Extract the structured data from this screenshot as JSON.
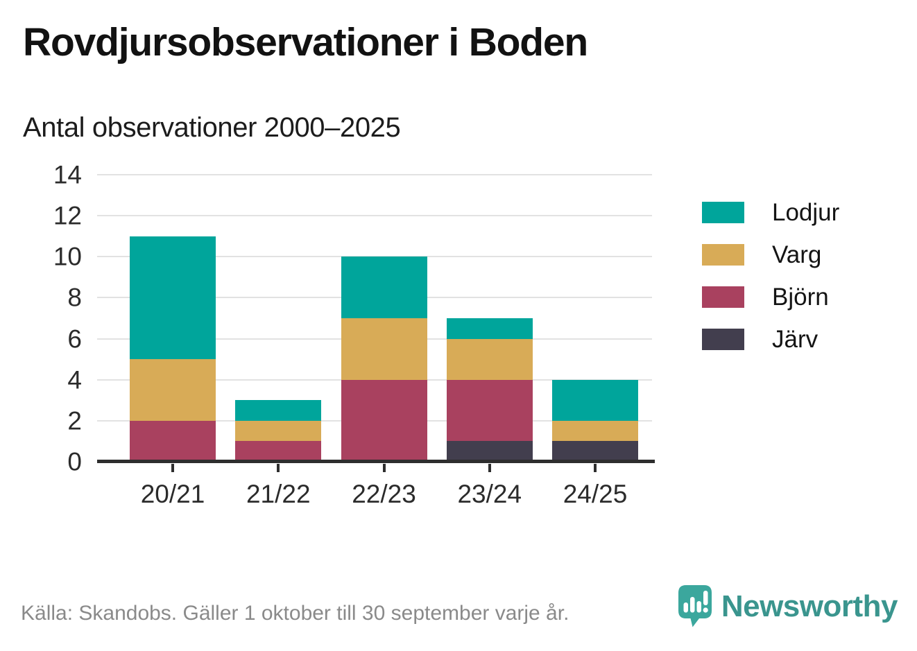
{
  "header": {
    "title": "Rovdjursobservationer i Boden",
    "subtitle": "Antal observationer 2000–2025"
  },
  "chart_data": {
    "type": "bar",
    "stacked": true,
    "title": "Rovdjursobservationer i Boden",
    "subtitle": "Antal observationer 2000–2025",
    "categories": [
      "20/21",
      "21/22",
      "22/23",
      "23/24",
      "24/25"
    ],
    "series": [
      {
        "name": "Lodjur",
        "color": "#00a59b",
        "values": [
          6,
          1,
          3,
          1,
          2
        ]
      },
      {
        "name": "Varg",
        "color": "#d8ab57",
        "values": [
          3,
          1,
          3,
          2,
          1
        ]
      },
      {
        "name": "Björn",
        "color": "#a9415f",
        "values": [
          2,
          1,
          4,
          3,
          0
        ]
      },
      {
        "name": "Järv",
        "color": "#423e4e",
        "values": [
          0,
          0,
          0,
          1,
          1
        ]
      }
    ],
    "stack_order_bottom_to_top": [
      "Järv",
      "Björn",
      "Varg",
      "Lodjur"
    ],
    "totals": [
      11,
      3,
      10,
      7,
      4
    ],
    "ylim": [
      0,
      14
    ],
    "ytick_step": 2,
    "yticks": [
      0,
      2,
      4,
      6,
      8,
      10,
      12,
      14
    ],
    "grid": true,
    "legend_position": "right"
  },
  "footer": {
    "source": "Källa: Skandobs. Gäller 1 oktober till 30 september varje år.",
    "brand": "Newsworthy"
  },
  "colors": {
    "lodjur": "#00a59b",
    "varg": "#d8ab57",
    "bjorn": "#a9415f",
    "jarv": "#423e4e",
    "gridline": "#e2e2e2",
    "axis": "#2e2e2e",
    "text": "#121212",
    "muted_text": "#8a8a8a",
    "brand_teal": "#3a958e",
    "logo_teal": "#3ba79d"
  }
}
